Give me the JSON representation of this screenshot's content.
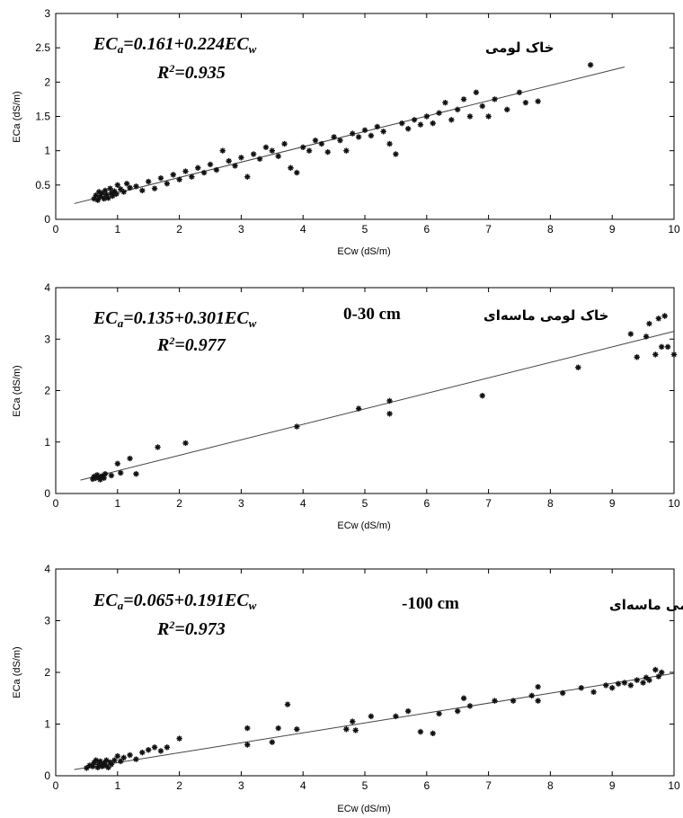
{
  "chart_data": [
    {
      "type": "scatter",
      "xlabel": "ECw (dS/m)",
      "ylabel": "ECa (dS/m)",
      "xlim": [
        0,
        10
      ],
      "ylim": [
        0,
        3
      ],
      "xticks": [
        "0",
        "1",
        "2",
        "3",
        "4",
        "5",
        "6",
        "7",
        "8",
        "9",
        "10"
      ],
      "yticks": [
        "0",
        "0.5",
        "1",
        "1.5",
        "2",
        "2.5",
        "3"
      ],
      "equation": {
        "lhs": "EC",
        "lhs_sub": "a",
        "rhs": "=0.161+0.224EC",
        "rhs_sub": "w"
      },
      "r2": {
        "label": "R",
        "sup": "2",
        "value": "=0.935"
      },
      "soil_label": "خاک لومی",
      "depth_label": "",
      "fit_line": {
        "x": [
          0.3,
          9.2
        ],
        "y": [
          0.23,
          2.22
        ]
      },
      "points": [
        [
          0.62,
          0.3
        ],
        [
          0.65,
          0.35
        ],
        [
          0.68,
          0.28
        ],
        [
          0.7,
          0.4
        ],
        [
          0.72,
          0.33
        ],
        [
          0.75,
          0.38
        ],
        [
          0.78,
          0.3
        ],
        [
          0.8,
          0.42
        ],
        [
          0.82,
          0.36
        ],
        [
          0.85,
          0.31
        ],
        [
          0.88,
          0.45
        ],
        [
          0.9,
          0.38
        ],
        [
          0.92,
          0.34
        ],
        [
          0.95,
          0.41
        ],
        [
          0.98,
          0.37
        ],
        [
          1.0,
          0.5
        ],
        [
          1.05,
          0.44
        ],
        [
          1.1,
          0.4
        ],
        [
          1.15,
          0.52
        ],
        [
          1.2,
          0.46
        ],
        [
          1.3,
          0.48
        ],
        [
          1.4,
          0.42
        ],
        [
          1.5,
          0.55
        ],
        [
          1.6,
          0.45
        ],
        [
          1.7,
          0.6
        ],
        [
          1.8,
          0.52
        ],
        [
          1.9,
          0.65
        ],
        [
          2.0,
          0.58
        ],
        [
          2.1,
          0.7
        ],
        [
          2.2,
          0.62
        ],
        [
          2.3,
          0.75
        ],
        [
          2.4,
          0.68
        ],
        [
          2.5,
          0.8
        ],
        [
          2.6,
          0.72
        ],
        [
          2.7,
          1.0
        ],
        [
          2.8,
          0.85
        ],
        [
          2.9,
          0.78
        ],
        [
          3.0,
          0.9
        ],
        [
          3.1,
          0.62
        ],
        [
          3.2,
          0.95
        ],
        [
          3.3,
          0.88
        ],
        [
          3.4,
          1.05
        ],
        [
          3.5,
          1.0
        ],
        [
          3.6,
          0.92
        ],
        [
          3.7,
          1.1
        ],
        [
          3.8,
          0.75
        ],
        [
          3.9,
          0.68
        ],
        [
          4.0,
          1.05
        ],
        [
          4.1,
          1.0
        ],
        [
          4.2,
          1.15
        ],
        [
          4.3,
          1.1
        ],
        [
          4.4,
          0.98
        ],
        [
          4.5,
          1.2
        ],
        [
          4.6,
          1.15
        ],
        [
          4.7,
          1.0
        ],
        [
          4.8,
          1.25
        ],
        [
          4.9,
          1.2
        ],
        [
          5.0,
          1.3
        ],
        [
          5.1,
          1.22
        ],
        [
          5.2,
          1.35
        ],
        [
          5.3,
          1.28
        ],
        [
          5.4,
          1.1
        ],
        [
          5.5,
          0.95
        ],
        [
          5.6,
          1.4
        ],
        [
          5.7,
          1.32
        ],
        [
          5.8,
          1.45
        ],
        [
          5.9,
          1.38
        ],
        [
          6.0,
          1.5
        ],
        [
          6.1,
          1.4
        ],
        [
          6.2,
          1.55
        ],
        [
          6.3,
          1.7
        ],
        [
          6.4,
          1.45
        ],
        [
          6.5,
          1.6
        ],
        [
          6.6,
          1.75
        ],
        [
          6.7,
          1.5
        ],
        [
          6.8,
          1.85
        ],
        [
          6.9,
          1.65
        ],
        [
          7.0,
          1.5
        ],
        [
          7.1,
          1.75
        ],
        [
          7.3,
          1.6
        ],
        [
          7.5,
          1.85
        ],
        [
          7.6,
          1.7
        ],
        [
          7.8,
          1.72
        ],
        [
          8.65,
          2.25
        ]
      ]
    },
    {
      "type": "scatter",
      "xlabel": "ECw (dS/m)",
      "ylabel": "ECa (dS/m)",
      "xlim": [
        0,
        10
      ],
      "ylim": [
        0,
        4
      ],
      "xticks": [
        "0",
        "1",
        "2",
        "3",
        "4",
        "5",
        "6",
        "7",
        "8",
        "9",
        "10"
      ],
      "yticks": [
        "0",
        "1",
        "2",
        "3",
        "4"
      ],
      "equation": {
        "lhs": "EC",
        "lhs_sub": "a",
        "rhs": "=0.135+0.301EC",
        "rhs_sub": "w"
      },
      "r2": {
        "label": "R",
        "sup": "2",
        "value": "=0.977"
      },
      "soil_label": "خاک لومی ماسه‌ای",
      "depth_label": "0-30 cm",
      "fit_line": {
        "x": [
          0.4,
          10.0
        ],
        "y": [
          0.26,
          3.15
        ]
      },
      "points": [
        [
          0.6,
          0.28
        ],
        [
          0.62,
          0.33
        ],
        [
          0.65,
          0.3
        ],
        [
          0.67,
          0.36
        ],
        [
          0.7,
          0.31
        ],
        [
          0.72,
          0.27
        ],
        [
          0.75,
          0.34
        ],
        [
          0.78,
          0.3
        ],
        [
          0.8,
          0.38
        ],
        [
          0.9,
          0.35
        ],
        [
          1.0,
          0.58
        ],
        [
          1.05,
          0.4
        ],
        [
          1.2,
          0.68
        ],
        [
          1.3,
          0.38
        ],
        [
          1.65,
          0.9
        ],
        [
          2.1,
          0.98
        ],
        [
          3.9,
          1.3
        ],
        [
          4.9,
          1.65
        ],
        [
          5.4,
          1.8
        ],
        [
          5.4,
          1.55
        ],
        [
          6.9,
          1.9
        ],
        [
          8.45,
          2.45
        ],
        [
          9.3,
          3.1
        ],
        [
          9.4,
          2.65
        ],
        [
          9.55,
          3.05
        ],
        [
          9.6,
          3.3
        ],
        [
          9.7,
          2.7
        ],
        [
          9.75,
          3.4
        ],
        [
          9.8,
          2.85
        ],
        [
          9.85,
          3.45
        ],
        [
          9.9,
          2.85
        ],
        [
          10.0,
          2.7
        ]
      ]
    },
    {
      "type": "scatter",
      "xlabel": "ECw (dS/m)",
      "ylabel": "ECa (dS/m)",
      "xlim": [
        0,
        10
      ],
      "ylim": [
        0,
        4
      ],
      "xticks": [
        "0",
        "1",
        "2",
        "3",
        "4",
        "5",
        "6",
        "7",
        "8",
        "9",
        "10"
      ],
      "yticks": [
        "0",
        "1",
        "2",
        "3",
        "4"
      ],
      "equation": {
        "lhs": "EC",
        "lhs_sub": "a",
        "rhs": "=0.065+0.191EC",
        "rhs_sub": "w"
      },
      "r2": {
        "label": "R",
        "sup": "2",
        "value": "=0.973"
      },
      "soil_label": "خاک لومی ماسه‌ای",
      "depth_label": "-100 cm",
      "fit_line": {
        "x": [
          0.3,
          10.0
        ],
        "y": [
          0.12,
          1.98
        ]
      },
      "points": [
        [
          0.5,
          0.15
        ],
        [
          0.55,
          0.2
        ],
        [
          0.6,
          0.18
        ],
        [
          0.62,
          0.25
        ],
        [
          0.65,
          0.3
        ],
        [
          0.68,
          0.16
        ],
        [
          0.7,
          0.22
        ],
        [
          0.72,
          0.28
        ],
        [
          0.75,
          0.18
        ],
        [
          0.78,
          0.24
        ],
        [
          0.8,
          0.2
        ],
        [
          0.82,
          0.3
        ],
        [
          0.85,
          0.16
        ],
        [
          0.88,
          0.26
        ],
        [
          0.9,
          0.22
        ],
        [
          0.95,
          0.3
        ],
        [
          1.0,
          0.38
        ],
        [
          1.05,
          0.28
        ],
        [
          1.1,
          0.35
        ],
        [
          1.2,
          0.4
        ],
        [
          1.3,
          0.32
        ],
        [
          1.4,
          0.45
        ],
        [
          1.5,
          0.5
        ],
        [
          1.6,
          0.55
        ],
        [
          1.7,
          0.48
        ],
        [
          1.8,
          0.55
        ],
        [
          2.0,
          0.72
        ],
        [
          3.1,
          0.92
        ],
        [
          3.1,
          0.6
        ],
        [
          3.5,
          0.65
        ],
        [
          3.6,
          0.92
        ],
        [
          3.75,
          1.38
        ],
        [
          3.9,
          0.9
        ],
        [
          4.7,
          0.9
        ],
        [
          4.8,
          1.05
        ],
        [
          4.85,
          0.88
        ],
        [
          5.1,
          1.15
        ],
        [
          5.5,
          1.15
        ],
        [
          5.7,
          1.25
        ],
        [
          5.9,
          0.85
        ],
        [
          6.1,
          0.82
        ],
        [
          6.2,
          1.2
        ],
        [
          6.5,
          1.25
        ],
        [
          6.6,
          1.5
        ],
        [
          6.7,
          1.35
        ],
        [
          7.1,
          1.45
        ],
        [
          7.4,
          1.45
        ],
        [
          7.7,
          1.55
        ],
        [
          7.8,
          1.72
        ],
        [
          7.8,
          1.45
        ],
        [
          8.2,
          1.6
        ],
        [
          8.5,
          1.7
        ],
        [
          8.7,
          1.62
        ],
        [
          8.9,
          1.75
        ],
        [
          9.0,
          1.7
        ],
        [
          9.1,
          1.78
        ],
        [
          9.2,
          1.8
        ],
        [
          9.3,
          1.75
        ],
        [
          9.4,
          1.85
        ],
        [
          9.5,
          1.8
        ],
        [
          9.55,
          1.9
        ],
        [
          9.6,
          1.85
        ],
        [
          9.7,
          2.05
        ],
        [
          9.75,
          1.92
        ],
        [
          9.8,
          2.0
        ]
      ]
    }
  ]
}
